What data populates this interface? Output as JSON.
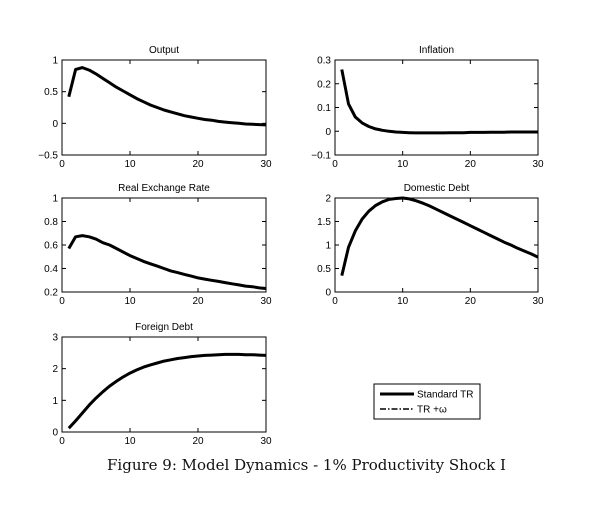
{
  "caption": "Figure 9: Model Dynamics - 1% Productivity Shock I",
  "legend": {
    "placement": "lower-right",
    "entries": [
      {
        "label": "Standard TR",
        "style": "solid"
      },
      {
        "label": "TR +ω",
        "style": "dash-dot"
      }
    ]
  },
  "chart_data": [
    {
      "type": "line",
      "title": "Output",
      "xlim": [
        0,
        30
      ],
      "ylim": [
        -0.5,
        1
      ],
      "xticks": [
        0,
        10,
        20,
        30
      ],
      "yticks": [
        -0.5,
        0,
        0.5,
        1
      ],
      "ytick_labels": [
        "−0.5",
        "0",
        "0.5",
        "1"
      ],
      "grid": false,
      "series": [
        {
          "x": [
            1,
            2,
            3,
            4,
            5,
            6,
            7,
            8,
            9,
            10,
            11,
            12,
            13,
            14,
            15,
            16,
            17,
            18,
            19,
            20,
            21,
            22,
            23,
            24,
            25,
            26,
            27,
            28,
            29,
            30
          ],
          "y": [
            0.42,
            0.85,
            0.88,
            0.84,
            0.78,
            0.71,
            0.64,
            0.57,
            0.51,
            0.45,
            0.39,
            0.34,
            0.29,
            0.25,
            0.21,
            0.18,
            0.15,
            0.12,
            0.1,
            0.08,
            0.06,
            0.05,
            0.03,
            0.02,
            0.01,
            0.0,
            -0.01,
            -0.015,
            -0.02,
            -0.025
          ]
        }
      ]
    },
    {
      "type": "line",
      "title": "Inflation",
      "xlim": [
        0,
        30
      ],
      "ylim": [
        -0.1,
        0.3
      ],
      "xticks": [
        0,
        10,
        20,
        30
      ],
      "yticks": [
        -0.1,
        0,
        0.1,
        0.2,
        0.3
      ],
      "ytick_labels": [
        "−0.1",
        "0",
        "0.1",
        "0.2",
        "0.3"
      ],
      "grid": false,
      "series": [
        {
          "x": [
            1,
            2,
            3,
            4,
            5,
            6,
            7,
            8,
            9,
            10,
            11,
            12,
            13,
            14,
            15,
            16,
            17,
            18,
            19,
            20,
            21,
            22,
            23,
            24,
            25,
            26,
            27,
            28,
            29,
            30
          ],
          "y": [
            0.26,
            0.115,
            0.06,
            0.035,
            0.02,
            0.01,
            0.004,
            0.0,
            -0.003,
            -0.005,
            -0.006,
            -0.007,
            -0.007,
            -0.007,
            -0.007,
            -0.007,
            -0.006,
            -0.006,
            -0.006,
            -0.005,
            -0.005,
            -0.005,
            -0.004,
            -0.004,
            -0.004,
            -0.003,
            -0.003,
            -0.003,
            -0.003,
            -0.003
          ]
        }
      ]
    },
    {
      "type": "line",
      "title": "Real Exchange Rate",
      "xlim": [
        0,
        30
      ],
      "ylim": [
        0.2,
        1
      ],
      "xticks": [
        0,
        10,
        20,
        30
      ],
      "yticks": [
        0.2,
        0.4,
        0.6,
        0.8,
        1
      ],
      "ytick_labels": [
        "0.2",
        "0.4",
        "0.6",
        "0.8",
        "1"
      ],
      "grid": false,
      "series": [
        {
          "x": [
            1,
            2,
            3,
            4,
            5,
            6,
            7,
            8,
            9,
            10,
            11,
            12,
            13,
            14,
            15,
            16,
            17,
            18,
            19,
            20,
            21,
            22,
            23,
            24,
            25,
            26,
            27,
            28,
            29,
            30
          ],
          "y": [
            0.57,
            0.67,
            0.68,
            0.67,
            0.65,
            0.62,
            0.6,
            0.57,
            0.54,
            0.51,
            0.485,
            0.46,
            0.44,
            0.42,
            0.4,
            0.38,
            0.365,
            0.35,
            0.335,
            0.32,
            0.31,
            0.3,
            0.29,
            0.28,
            0.27,
            0.26,
            0.25,
            0.245,
            0.235,
            0.23
          ]
        }
      ]
    },
    {
      "type": "line",
      "title": "Domestic Debt",
      "xlim": [
        0,
        30
      ],
      "ylim": [
        0,
        2
      ],
      "xticks": [
        0,
        10,
        20,
        30
      ],
      "yticks": [
        0,
        0.5,
        1,
        1.5,
        2
      ],
      "ytick_labels": [
        "0",
        "0.5",
        "1",
        "1.5",
        "2"
      ],
      "grid": false,
      "series": [
        {
          "x": [
            1,
            2,
            3,
            4,
            5,
            6,
            7,
            8,
            9,
            10,
            11,
            12,
            13,
            14,
            15,
            16,
            17,
            18,
            19,
            20,
            21,
            22,
            23,
            24,
            25,
            26,
            27,
            28,
            29,
            30
          ],
          "y": [
            0.35,
            0.95,
            1.3,
            1.55,
            1.72,
            1.84,
            1.92,
            1.97,
            1.99,
            2.0,
            1.98,
            1.94,
            1.89,
            1.83,
            1.76,
            1.69,
            1.62,
            1.55,
            1.48,
            1.41,
            1.34,
            1.27,
            1.2,
            1.13,
            1.06,
            1.0,
            0.93,
            0.87,
            0.81,
            0.74
          ]
        }
      ]
    },
    {
      "type": "line",
      "title": "Foreign Debt",
      "xlim": [
        0,
        30
      ],
      "ylim": [
        0,
        3
      ],
      "xticks": [
        0,
        10,
        20,
        30
      ],
      "yticks": [
        0,
        1,
        2,
        3
      ],
      "ytick_labels": [
        "0",
        "1",
        "2",
        "3"
      ],
      "grid": false,
      "series": [
        {
          "x": [
            1,
            2,
            3,
            4,
            5,
            6,
            7,
            8,
            9,
            10,
            11,
            12,
            13,
            14,
            15,
            16,
            17,
            18,
            19,
            20,
            21,
            22,
            23,
            24,
            25,
            26,
            27,
            28,
            29,
            30
          ],
          "y": [
            0.12,
            0.35,
            0.6,
            0.85,
            1.07,
            1.27,
            1.45,
            1.6,
            1.74,
            1.86,
            1.96,
            2.05,
            2.12,
            2.18,
            2.24,
            2.28,
            2.32,
            2.35,
            2.38,
            2.4,
            2.42,
            2.43,
            2.44,
            2.45,
            2.45,
            2.45,
            2.44,
            2.44,
            2.43,
            2.42
          ]
        }
      ]
    }
  ]
}
